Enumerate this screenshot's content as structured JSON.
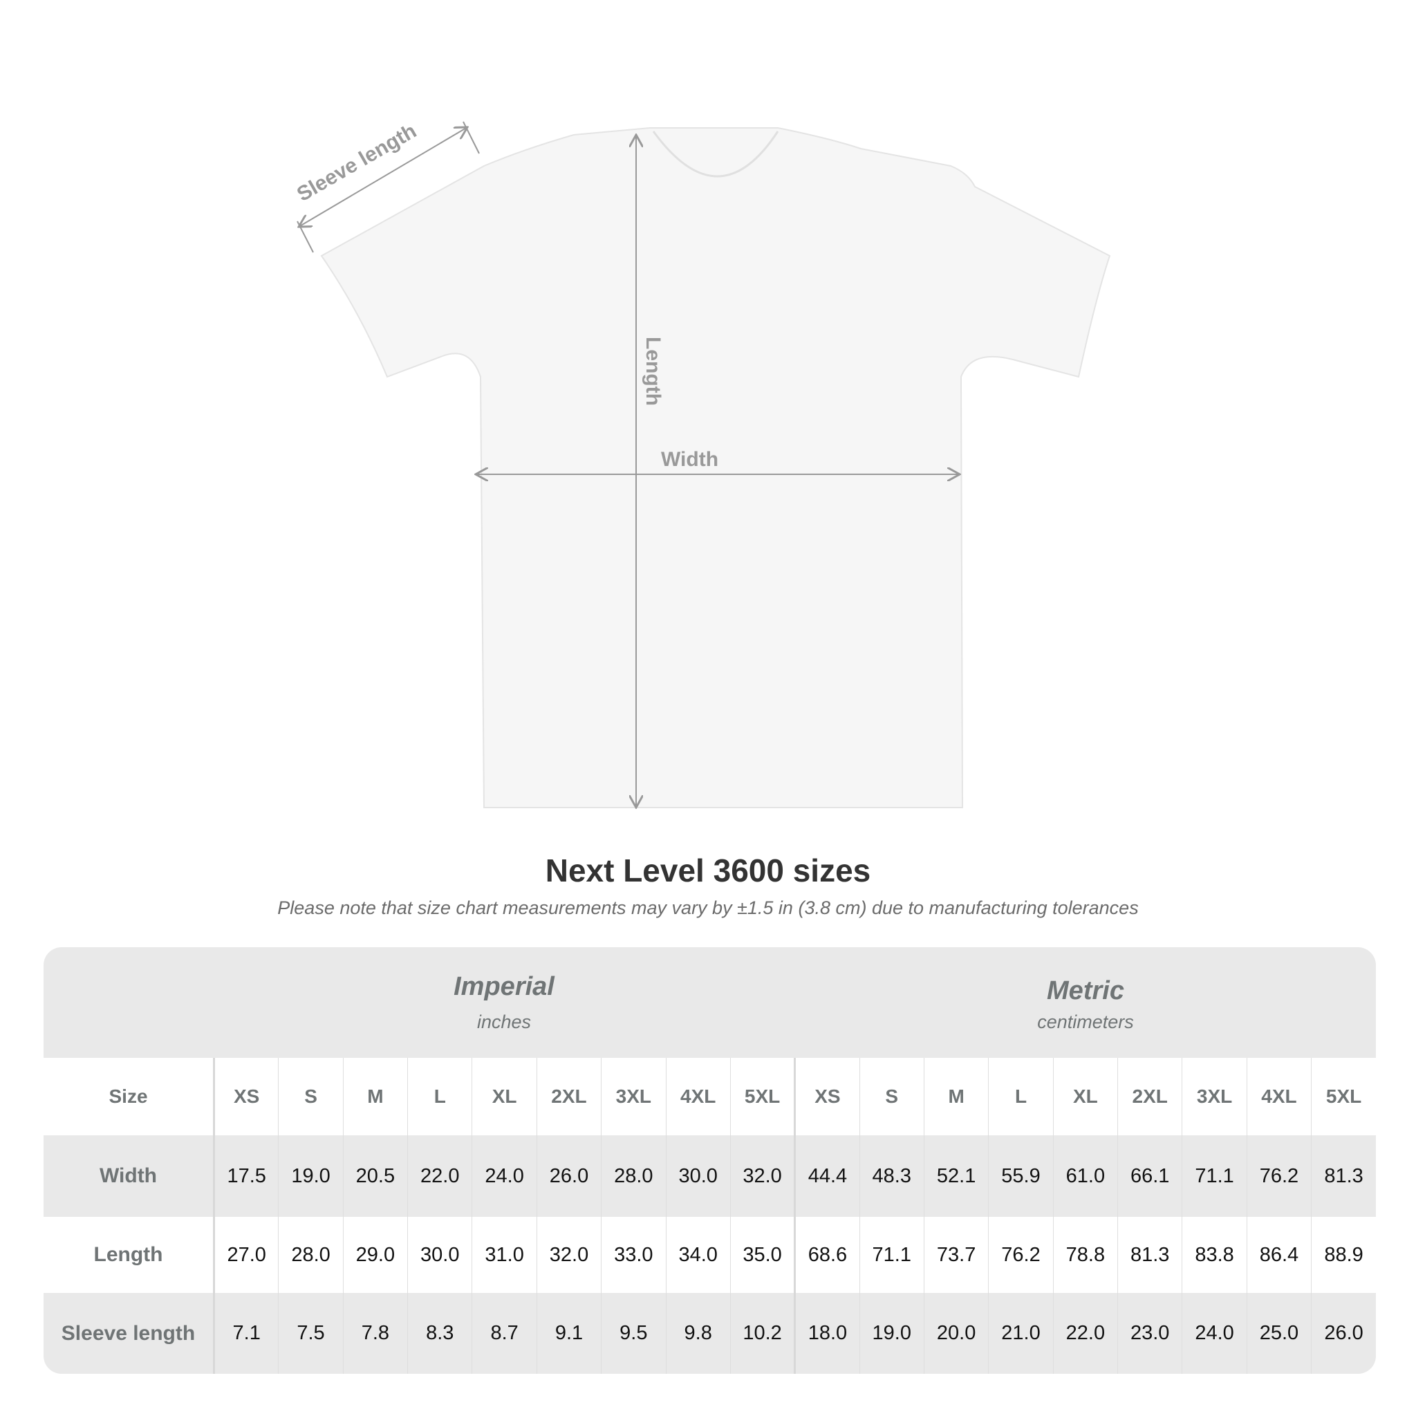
{
  "diagram": {
    "sleeve_label": "Sleeve length",
    "length_label": "Length",
    "width_label": "Width"
  },
  "title": "Next Level 3600 sizes",
  "subtitle": "Please note that size chart measurements may vary by ±1.5 in (3.8 cm) due to manufacturing tolerances",
  "imperial": {
    "name": "Imperial",
    "unit": "inches"
  },
  "metric": {
    "name": "Metric",
    "unit": "centimeters"
  },
  "table": {
    "size_label": "Size",
    "sizes": [
      "XS",
      "S",
      "M",
      "L",
      "XL",
      "2XL",
      "3XL",
      "4XL",
      "5XL"
    ],
    "rows": [
      {
        "label": "Width",
        "imperial": [
          "17.5",
          "19.0",
          "20.5",
          "22.0",
          "24.0",
          "26.0",
          "28.0",
          "30.0",
          "32.0"
        ],
        "metric": [
          "44.4",
          "48.3",
          "52.1",
          "55.9",
          "61.0",
          "66.1",
          "71.1",
          "76.2",
          "81.3"
        ]
      },
      {
        "label": "Length",
        "imperial": [
          "27.0",
          "28.0",
          "29.0",
          "30.0",
          "31.0",
          "32.0",
          "33.0",
          "34.0",
          "35.0"
        ],
        "metric": [
          "68.6",
          "71.1",
          "73.7",
          "76.2",
          "78.8",
          "81.3",
          "83.8",
          "86.4",
          "88.9"
        ]
      },
      {
        "label": "Sleeve length",
        "imperial": [
          "7.1",
          "7.5",
          "7.8",
          "8.3",
          "8.7",
          "9.1",
          "9.5",
          "9.8",
          "10.2"
        ],
        "metric": [
          "18.0",
          "19.0",
          "20.0",
          "21.0",
          "22.0",
          "23.0",
          "24.0",
          "25.0",
          "26.0"
        ]
      }
    ]
  },
  "colors": {
    "band": "#e9e9e9",
    "label_text": "#6f7475",
    "arrow": "#999999"
  }
}
